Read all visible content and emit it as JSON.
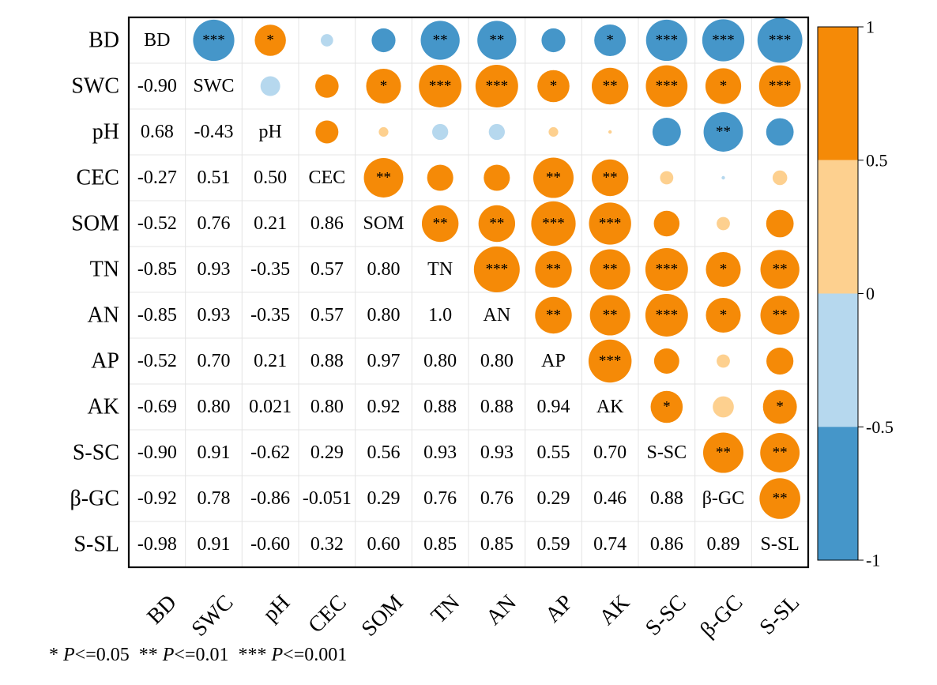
{
  "chart_data": {
    "type": "heatmap",
    "title": "",
    "variables": [
      "BD",
      "SWC",
      "pH",
      "CEC",
      "SOM",
      "TN",
      "AN",
      "AP",
      "AK",
      "S-SC",
      "β-GC",
      "S-SL"
    ],
    "lower_labels": [
      [],
      [
        "-0.90"
      ],
      [
        "0.68",
        "-0.43"
      ],
      [
        "-0.27",
        "0.51",
        "0.50"
      ],
      [
        "-0.52",
        "0.76",
        "0.21",
        "0.86"
      ],
      [
        "-0.85",
        "0.93",
        "-0.35",
        "0.57",
        "0.80"
      ],
      [
        "-0.85",
        "0.93",
        "-0.35",
        "0.57",
        "0.80",
        "1.0"
      ],
      [
        "-0.52",
        "0.70",
        "0.21",
        "0.88",
        "0.97",
        "0.80",
        "0.80"
      ],
      [
        "-0.69",
        "0.80",
        "0.021",
        "0.80",
        "0.92",
        "0.88",
        "0.88",
        "0.94"
      ],
      [
        "-0.90",
        "0.91",
        "-0.62",
        "0.29",
        "0.56",
        "0.93",
        "0.93",
        "0.55",
        "0.70"
      ],
      [
        "-0.92",
        "0.78",
        "-0.86",
        "-0.051",
        "0.29",
        "0.76",
        "0.76",
        "0.29",
        "0.46",
        "0.88"
      ],
      [
        "-0.98",
        "0.91",
        "-0.60",
        "0.32",
        "0.60",
        "0.85",
        "0.85",
        "0.59",
        "0.74",
        "0.86",
        "0.89"
      ]
    ],
    "significance": [
      [
        "",
        "***",
        "*",
        "",
        "",
        "**",
        "**",
        "",
        "*",
        "***",
        "***",
        "***"
      ],
      [
        "",
        "",
        "",
        "",
        "*",
        "***",
        "***",
        "*",
        "**",
        "***",
        "*",
        "***"
      ],
      [
        "",
        "",
        "",
        "",
        "",
        "",
        "",
        "",
        "",
        "",
        "**",
        ""
      ],
      [
        "",
        "",
        "",
        "",
        "**",
        "",
        "",
        "**",
        "**",
        "",
        "",
        ""
      ],
      [
        "",
        "",
        "",
        "",
        "",
        "**",
        "**",
        "***",
        "***",
        "",
        "",
        ""
      ],
      [
        "",
        "",
        "",
        "",
        "",
        "",
        "***",
        "**",
        "**",
        "***",
        "*",
        "**"
      ],
      [
        "",
        "",
        "",
        "",
        "",
        "",
        "",
        "**",
        "**",
        "***",
        "*",
        "**"
      ],
      [
        "",
        "",
        "",
        "",
        "",
        "",
        "",
        "",
        "***",
        "",
        "",
        ""
      ],
      [
        "",
        "",
        "",
        "",
        "",
        "",
        "",
        "",
        "",
        "*",
        "",
        "*"
      ],
      [
        "",
        "",
        "",
        "",
        "",
        "",
        "",
        "",
        "",
        "",
        "**",
        "**"
      ],
      [
        "",
        "",
        "",
        "",
        "",
        "",
        "",
        "",
        "",
        "",
        "",
        "**"
      ],
      [
        "",
        "",
        "",
        "",
        "",
        "",
        "",
        "",
        "",
        "",
        "",
        ""
      ]
    ],
    "colorbar": {
      "range": [
        -1,
        1
      ],
      "tick_labels": [
        "1",
        "0.5",
        "0",
        "-0.5",
        "-1"
      ],
      "bins": [
        {
          "from": 0.5,
          "to": 1.0,
          "color": "#F58A07"
        },
        {
          "from": 0.0,
          "to": 0.5,
          "color": "#FDD08F"
        },
        {
          "from": -0.5,
          "to": 0.0,
          "color": "#B6D8EE"
        },
        {
          "from": -1.0,
          "to": -0.5,
          "color": "#4596C9"
        }
      ]
    },
    "grid": true,
    "legend": "right"
  },
  "footnote": {
    "p1_stars": "* ",
    "p1_label": "P",
    "p1_value": "<=0.05",
    "p2_stars": "  ** ",
    "p2_label": "P",
    "p2_value": "<=0.01",
    "p3_stars": "  *** ",
    "p3_label": "P",
    "p3_value": "<=0.001"
  }
}
